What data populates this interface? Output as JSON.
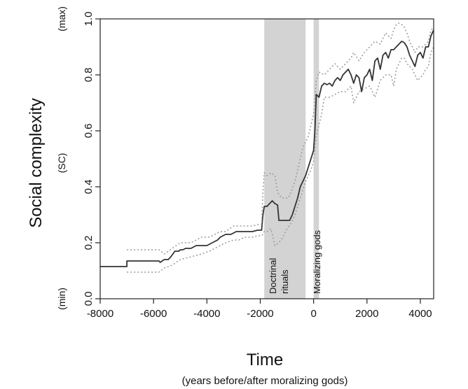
{
  "chart_data": {
    "type": "line",
    "title": "",
    "xlabel": "Time",
    "xlabel_sub": "(years before/after moralizing gods)",
    "ylabel": "Social complexity",
    "ylabel_sub": "(SC)",
    "y_max_label": "(max)",
    "y_min_label": "(min)",
    "xlim": [
      -8000,
      4500
    ],
    "ylim": [
      0.0,
      1.0
    ],
    "x_ticks": [
      -8000,
      -6000,
      -4000,
      -2000,
      0,
      2000,
      4000
    ],
    "x_tick_labels": [
      "-8000",
      "-6000",
      "-4000",
      "-2000",
      "0",
      "2000",
      "4000"
    ],
    "y_ticks": [
      0.0,
      0.2,
      0.4,
      0.6,
      0.8,
      1.0
    ],
    "y_tick_labels": [
      "0.0",
      "0.2",
      "0.4",
      "0.6",
      "0.8",
      "1.0"
    ],
    "grid": false,
    "shaded_regions": [
      {
        "label_line1": "Doctrinal",
        "label_line2": "rituals",
        "x_start": -1850,
        "x_end": -300,
        "color": "#d3d3d3"
      },
      {
        "label_line1": "Moralizing gods",
        "label_line2": "",
        "x_start": 0,
        "x_end": 200,
        "color": "#d3d3d3"
      }
    ],
    "series": [
      {
        "style": "solid",
        "color": "#333333",
        "x": [
          -8000,
          -7000,
          -6999,
          -5800,
          -5750,
          -5600,
          -5450,
          -5350,
          -5200,
          -5050,
          -5000,
          -4900,
          -4800,
          -4600,
          -4400,
          -4200,
          -4000,
          -3800,
          -3600,
          -3500,
          -3300,
          -3100,
          -2900,
          -2700,
          -2500,
          -2300,
          -2100,
          -1950,
          -1900,
          -1850,
          -1750,
          -1650,
          -1550,
          -1450,
          -1350,
          -1300,
          -1200,
          -1100,
          -1000,
          -900,
          -800,
          -700,
          -600,
          -500,
          -400,
          -300,
          -200,
          -100,
          0,
          50,
          100,
          200,
          300,
          400,
          500,
          600,
          700,
          800,
          900,
          1000,
          1100,
          1200,
          1300,
          1400,
          1500,
          1600,
          1700,
          1800,
          1900,
          2000,
          2100,
          2200,
          2300,
          2400,
          2500,
          2600,
          2700,
          2800,
          2900,
          3000,
          3100,
          3200,
          3300,
          3400,
          3500,
          3600,
          3700,
          3800,
          3900,
          4000,
          4100,
          4200,
          4300,
          4400,
          4500
        ],
        "y": [
          0.115,
          0.115,
          0.135,
          0.135,
          0.13,
          0.14,
          0.14,
          0.15,
          0.17,
          0.17,
          0.175,
          0.175,
          0.18,
          0.18,
          0.19,
          0.19,
          0.19,
          0.2,
          0.21,
          0.22,
          0.23,
          0.23,
          0.24,
          0.24,
          0.24,
          0.24,
          0.245,
          0.245,
          0.3,
          0.33,
          0.33,
          0.34,
          0.35,
          0.34,
          0.335,
          0.28,
          0.28,
          0.28,
          0.28,
          0.28,
          0.3,
          0.33,
          0.36,
          0.4,
          0.42,
          0.44,
          0.47,
          0.5,
          0.53,
          0.6,
          0.73,
          0.72,
          0.76,
          0.77,
          0.765,
          0.77,
          0.76,
          0.78,
          0.79,
          0.78,
          0.8,
          0.81,
          0.82,
          0.8,
          0.77,
          0.8,
          0.79,
          0.74,
          0.79,
          0.8,
          0.82,
          0.78,
          0.85,
          0.86,
          0.82,
          0.87,
          0.88,
          0.86,
          0.89,
          0.89,
          0.9,
          0.91,
          0.92,
          0.915,
          0.9,
          0.87,
          0.85,
          0.83,
          0.87,
          0.88,
          0.86,
          0.9,
          0.9,
          0.94,
          0.96
        ]
      },
      {
        "style": "dotted",
        "color": "#999999",
        "x": [
          -7000,
          -5800,
          -5600,
          -5300,
          -5000,
          -4600,
          -4200,
          -3900,
          -3700,
          -3500,
          -3300,
          -3000,
          -2800,
          -2600,
          -2300,
          -2100,
          -1950,
          -1900,
          -1850,
          -1750,
          -1600,
          -1450,
          -1350,
          -1200,
          -1100,
          -950,
          -850,
          -700,
          -600,
          -500,
          -400,
          -300,
          -200,
          -100,
          0,
          100,
          200,
          400,
          600,
          800,
          1000,
          1200,
          1400,
          1500,
          1700,
          1900,
          2100,
          2300,
          2500,
          2700,
          2900,
          3000,
          3100,
          3200,
          3300,
          3400,
          3500,
          3600,
          3700,
          3800,
          3900,
          4000,
          4100,
          4200,
          4300,
          4400,
          4500
        ],
        "y": [
          0.175,
          0.175,
          0.16,
          0.18,
          0.2,
          0.2,
          0.22,
          0.22,
          0.23,
          0.24,
          0.24,
          0.26,
          0.26,
          0.26,
          0.26,
          0.265,
          0.265,
          0.38,
          0.45,
          0.44,
          0.45,
          0.44,
          0.38,
          0.36,
          0.36,
          0.36,
          0.38,
          0.42,
          0.46,
          0.5,
          0.54,
          0.56,
          0.58,
          0.62,
          0.66,
          0.78,
          0.81,
          0.8,
          0.82,
          0.84,
          0.82,
          0.84,
          0.86,
          0.88,
          0.85,
          0.88,
          0.9,
          0.92,
          0.91,
          0.95,
          0.93,
          0.96,
          0.98,
          0.985,
          0.98,
          0.97,
          0.95,
          0.92,
          0.9,
          0.88,
          0.9,
          0.9,
          0.9,
          0.91,
          0.92,
          0.96,
          0.97
        ]
      },
      {
        "style": "dotted",
        "color": "#999999",
        "x": [
          -7000,
          -5800,
          -5600,
          -5300,
          -5000,
          -4600,
          -4200,
          -3900,
          -3700,
          -3500,
          -3300,
          -3000,
          -2800,
          -2600,
          -2300,
          -2100,
          -1950,
          -1900,
          -1850,
          -1750,
          -1600,
          -1450,
          -1300,
          -1150,
          -1000,
          -850,
          -700,
          -600,
          -500,
          -400,
          -300,
          -200,
          -100,
          0,
          100,
          200,
          300,
          400,
          600,
          800,
          1000,
          1200,
          1400,
          1500,
          1700,
          1900,
          2100,
          2300,
          2500,
          2700,
          2900,
          3000,
          3100,
          3200,
          3300,
          3400,
          3500,
          3600,
          3700,
          3800,
          3900,
          4000,
          4100,
          4200,
          4300,
          4400,
          4500
        ],
        "y": [
          0.095,
          0.095,
          0.11,
          0.12,
          0.14,
          0.15,
          0.16,
          0.17,
          0.18,
          0.19,
          0.2,
          0.21,
          0.21,
          0.22,
          0.22,
          0.225,
          0.225,
          0.23,
          0.24,
          0.24,
          0.25,
          0.19,
          0.2,
          0.22,
          0.25,
          0.27,
          0.3,
          0.33,
          0.36,
          0.39,
          0.42,
          0.44,
          0.46,
          0.49,
          0.58,
          0.62,
          0.66,
          0.72,
          0.72,
          0.73,
          0.74,
          0.74,
          0.76,
          0.7,
          0.74,
          0.75,
          0.76,
          0.72,
          0.78,
          0.8,
          0.8,
          0.76,
          0.82,
          0.84,
          0.86,
          0.86,
          0.84,
          0.83,
          0.82,
          0.8,
          0.78,
          0.79,
          0.8,
          0.82,
          0.83,
          0.88,
          0.9
        ]
      }
    ]
  }
}
